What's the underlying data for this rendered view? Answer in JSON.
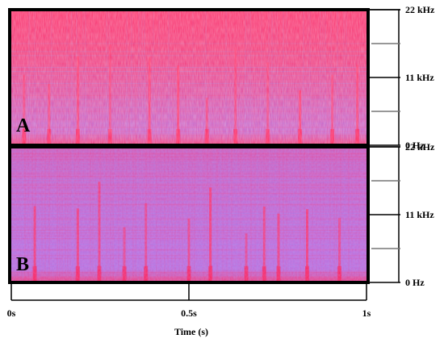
{
  "chart_data": {
    "type": "heatmap",
    "description_kind": "spectrogram",
    "colormap": [
      "#8f8cf4",
      "#c06ad8",
      "#f03c7c",
      "#ff2f66"
    ],
    "frame_color": "#000000",
    "xlabel": "Time (s)",
    "x_ticks": [
      {
        "value": 0,
        "label": "0s"
      },
      {
        "value": 0.5,
        "label": "0.5s"
      },
      {
        "value": 1,
        "label": "1s"
      }
    ],
    "xlim": [
      0,
      1
    ],
    "y_unit": "Hz",
    "ylim": [
      0,
      22000
    ],
    "panels": [
      {
        "label": "A",
        "y_ticks": [
          {
            "value": 22000,
            "label": "22 kHz"
          },
          {
            "value": 16500,
            "label": ""
          },
          {
            "value": 11000,
            "label": "11 kHz"
          },
          {
            "value": 5500,
            "label": ""
          },
          {
            "value": 0,
            "label": "0 Hz"
          }
        ],
        "high_band_intensity": 0.9,
        "low_band_intensity": 0.35,
        "transients": [
          0.04,
          0.11,
          0.19,
          0.28,
          0.39,
          0.47,
          0.55,
          0.63,
          0.72,
          0.81,
          0.9,
          0.97
        ]
      },
      {
        "label": "B",
        "y_ticks": [
          {
            "value": 22000,
            "label": "22 kHz"
          },
          {
            "value": 16500,
            "label": ""
          },
          {
            "value": 11000,
            "label": "11 kHz"
          },
          {
            "value": 5500,
            "label": ""
          },
          {
            "value": 0,
            "label": "0 Hz"
          }
        ],
        "high_band_intensity": 0.45,
        "low_band_intensity": 0.3,
        "transients": [
          0.07,
          0.19,
          0.25,
          0.32,
          0.38,
          0.5,
          0.56,
          0.66,
          0.71,
          0.75,
          0.83,
          0.92
        ]
      }
    ]
  }
}
